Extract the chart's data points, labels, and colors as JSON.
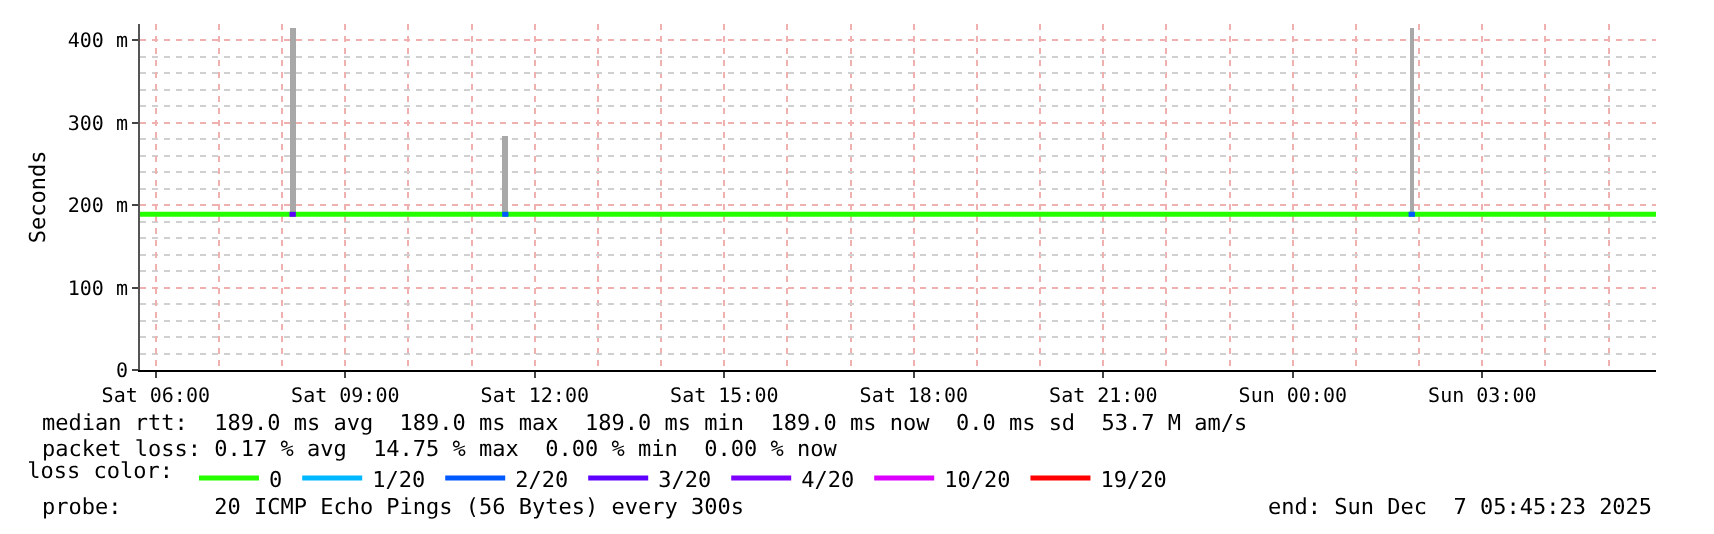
{
  "chart_data": {
    "type": "line",
    "ylabel": "Seconds",
    "xlim": [
      "2025-12-06T05:45",
      "2025-12-07T05:45"
    ],
    "xticks": [
      {
        "value": "2025-12-06T06:00",
        "label": "Sat 06:00"
      },
      {
        "value": "2025-12-06T09:00",
        "label": "Sat 09:00"
      },
      {
        "value": "2025-12-06T12:00",
        "label": "Sat 12:00"
      },
      {
        "value": "2025-12-06T15:00",
        "label": "Sat 15:00"
      },
      {
        "value": "2025-12-06T18:00",
        "label": "Sat 18:00"
      },
      {
        "value": "2025-12-06T21:00",
        "label": "Sat 21:00"
      },
      {
        "value": "2025-12-07T00:00",
        "label": "Sun 00:00"
      },
      {
        "value": "2025-12-07T03:00",
        "label": "Sun 03:00"
      }
    ],
    "ylim": [
      0,
      420
    ],
    "yticks": [
      0,
      {
        "value": 100,
        "label": "100 m"
      },
      {
        "value": 200,
        "label": "200 m"
      },
      {
        "value": 300,
        "label": "300 m"
      },
      {
        "value": 400,
        "label": "400 m"
      }
    ],
    "grid": true,
    "legend": "bottom",
    "legend_title": "loss color:",
    "series": [
      {
        "type": "bar",
        "color": "#a8a8a8",
        "x": [
          "2025-12-06T08:10",
          "2025-12-06T11:32",
          "2025-12-07T01:53"
        ],
        "base": [
          189,
          189,
          189
        ],
        "values": [
          226,
          94,
          226
        ]
      },
      {
        "name": "0",
        "color": "#26ff00",
        "x": [
          "2025-12-06T05:45",
          "2025-12-07T05:45"
        ],
        "values": [
          189,
          189
        ]
      },
      {
        "name": "1/20",
        "color": "#00b8ff"
      },
      {
        "name": "2/20",
        "color": "#0059ff",
        "x": [
          "2025-12-06T11:29",
          "2025-12-06T11:35",
          null,
          "2025-12-07T01:50",
          "2025-12-07T01:56"
        ],
        "values": [
          189,
          189,
          null,
          189,
          189
        ]
      },
      {
        "name": "3/20",
        "color": "#5e00ff",
        "x": [
          "2025-12-06T08:07",
          "2025-12-06T08:13"
        ],
        "values": [
          189,
          189
        ]
      },
      {
        "name": "4/20",
        "color": "#7e00ff"
      },
      {
        "name": "10/20",
        "color": "#dd00ff"
      },
      {
        "name": "19/20",
        "color": "#ff0000"
      }
    ],
    "annotations": [
      "median rtt:  189.0 ms avg  189.0 ms max  189.0 ms min  189.0 ms now  0.0 ms sd  53.7 M am/s",
      "packet loss: 0.17 % avg  14.75 % max  0.00 % min  0.00 % now",
      "probe:       20 ICMP Echo Pings (56 Bytes) every 300s",
      "end: Sun Dec  7 05:45:23 2025"
    ]
  }
}
